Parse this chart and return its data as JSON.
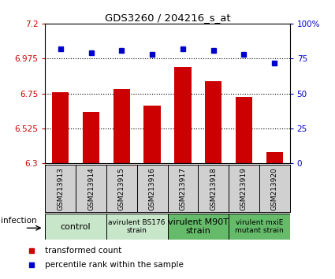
{
  "title": "GDS3260 / 204216_s_at",
  "samples": [
    "GSM213913",
    "GSM213914",
    "GSM213915",
    "GSM213916",
    "GSM213917",
    "GSM213918",
    "GSM213919",
    "GSM213920"
  ],
  "transformed_counts": [
    6.76,
    6.63,
    6.78,
    6.67,
    6.92,
    6.83,
    6.73,
    6.37
  ],
  "percentile_ranks": [
    82,
    79,
    81,
    78,
    82,
    81,
    78,
    72
  ],
  "ylim_left": [
    6.3,
    7.2
  ],
  "ylim_right": [
    0,
    100
  ],
  "yticks_left": [
    6.3,
    6.525,
    6.75,
    6.975,
    7.2
  ],
  "yticks_right": [
    0,
    25,
    50,
    75,
    100
  ],
  "ytick_labels_left": [
    "6.3",
    "6.525",
    "6.75",
    "6.975",
    "7.2"
  ],
  "ytick_labels_right": [
    "0",
    "25",
    "50",
    "75",
    "100%"
  ],
  "hlines": [
    6.525,
    6.75,
    6.975
  ],
  "bar_color": "#cc0000",
  "dot_color": "#0000cc",
  "bar_bottom": 6.3,
  "groups": [
    {
      "label": "control",
      "start": 0,
      "end": 2,
      "color": "#c8e6c9",
      "fontsize": 8
    },
    {
      "label": "avirulent BS176\nstrain",
      "start": 2,
      "end": 4,
      "color": "#c8e6c9",
      "fontsize": 6.5
    },
    {
      "label": "virulent M90T\nstrain",
      "start": 4,
      "end": 6,
      "color": "#66bb6a",
      "fontsize": 8
    },
    {
      "label": "virulent mxiE\nmutant strain",
      "start": 6,
      "end": 8,
      "color": "#66bb6a",
      "fontsize": 6.5
    }
  ],
  "infection_label": "infection",
  "legend_items": [
    {
      "color": "#cc0000",
      "label": "transformed count"
    },
    {
      "color": "#0000cc",
      "label": "percentile rank within the sample"
    }
  ],
  "ylabel_left_color": "#cc0000",
  "ylabel_right_color": "#0000cc",
  "sample_bg_color": "#d0d0d0",
  "plot_bg_color": "#ffffff",
  "border_color": "#000000"
}
